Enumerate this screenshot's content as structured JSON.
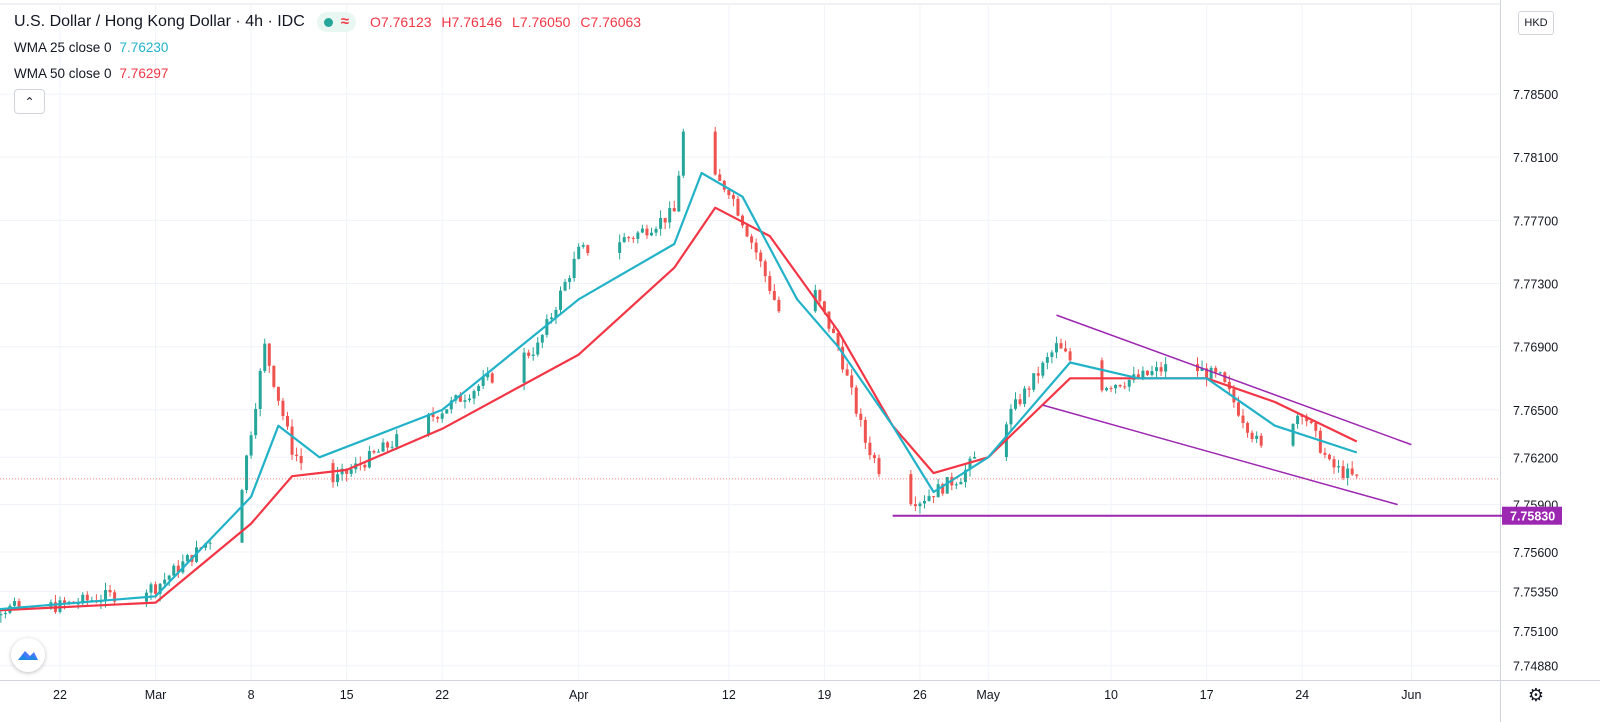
{
  "header": {
    "symbol": "U.S. Dollar / Hong Kong Dollar · 4h · IDC",
    "ohlc": {
      "o": "7.76123",
      "h": "7.76146",
      "l": "7.76050",
      "c": "7.76063"
    }
  },
  "studies": [
    {
      "label": "WMA 25 close 0",
      "value": "7.76230",
      "color": "#22b2c8"
    },
    {
      "label": "WMA 50 close 0",
      "value": "7.76297",
      "color": "#f23645"
    }
  ],
  "currency_label": "HKD",
  "colors": {
    "up": "#26a69a",
    "down": "#ef5350",
    "wma25": "#22b2c8",
    "wma50": "#f23645",
    "trend": "#9c27b0",
    "grid": "#f0f3fa",
    "axis_text": "#131722"
  },
  "chart_data": {
    "type": "candlestick",
    "title": "U.S. Dollar / Hong Kong Dollar",
    "timeframe": "4h",
    "ylim": [
      7.7478,
      7.7875
    ],
    "y_ticks": [
      "7.78500",
      "7.78100",
      "7.77700",
      "7.77300",
      "7.76900",
      "7.76500",
      "7.76200",
      "7.75900",
      "7.75600",
      "7.75350",
      "7.75100",
      "7.74880"
    ],
    "x_ticks": [
      "22",
      "Mar",
      "8",
      "15",
      "22",
      "Apr",
      "12",
      "19",
      "26",
      "May",
      "10",
      "17",
      "24",
      "Jun"
    ],
    "price_label": "7.75830",
    "current_price": 7.76063,
    "price_path": [
      [
        "Feb 15",
        7.7523
      ],
      [
        "Feb 22",
        7.7526
      ],
      [
        "Mar 1",
        7.7538
      ],
      [
        "Mar 4",
        7.756
      ],
      [
        "Mar 7",
        7.7585
      ],
      [
        "Mar 9",
        7.769
      ],
      [
        "Mar 11",
        7.7625
      ],
      [
        "Mar 13",
        7.76
      ],
      [
        "Mar 15",
        7.761
      ],
      [
        "Mar 22",
        7.765
      ],
      [
        "Mar 29",
        7.769
      ],
      [
        "Apr 1",
        7.775
      ],
      [
        "Apr 5",
        7.776
      ],
      [
        "Apr 8",
        7.7775
      ],
      [
        "Apr 9",
        7.785
      ],
      [
        "Apr 10",
        7.78
      ],
      [
        "Apr 12",
        7.779
      ],
      [
        "Apr 14",
        7.775
      ],
      [
        "Apr 16",
        7.7705
      ],
      [
        "Apr 18",
        7.773
      ],
      [
        "Apr 20",
        7.769
      ],
      [
        "Apr 22",
        7.763
      ],
      [
        "Apr 24",
        7.7596
      ],
      [
        "Apr 26",
        7.7593
      ],
      [
        "Apr 29",
        7.7608
      ],
      [
        "May 2",
        7.764
      ],
      [
        "May 6",
        7.769
      ],
      [
        "May 9",
        7.7665
      ],
      [
        "May 12",
        7.767
      ],
      [
        "May 15",
        7.768
      ],
      [
        "May 18",
        7.767
      ],
      [
        "May 21",
        7.7625
      ],
      [
        "May 24",
        7.765
      ],
      [
        "May 26",
        7.7615
      ],
      [
        "May 28",
        7.7606
      ]
    ],
    "wma25": [
      [
        "Feb 15",
        7.7522
      ],
      [
        "Mar 1",
        7.7532
      ],
      [
        "Mar 8",
        7.7595
      ],
      [
        "Mar 10",
        7.764
      ],
      [
        "Mar 13",
        7.762
      ],
      [
        "Mar 22",
        7.765
      ],
      [
        "Apr 1",
        7.772
      ],
      [
        "Apr 8",
        7.7755
      ],
      [
        "Apr 10",
        7.78
      ],
      [
        "Apr 13",
        7.7785
      ],
      [
        "Apr 17",
        7.772
      ],
      [
        "Apr 20",
        7.769
      ],
      [
        "Apr 24",
        7.764
      ],
      [
        "Apr 27",
        7.7598
      ],
      [
        "May 1",
        7.762
      ],
      [
        "May 7",
        7.768
      ],
      [
        "May 12",
        7.767
      ],
      [
        "May 17",
        7.767
      ],
      [
        "May 22",
        7.764
      ],
      [
        "May 28",
        7.7623
      ]
    ],
    "wma50": [
      [
        "Feb 15",
        7.7522
      ],
      [
        "Mar 1",
        7.7528
      ],
      [
        "Mar 8",
        7.7578
      ],
      [
        "Mar 11",
        7.7608
      ],
      [
        "Mar 15",
        7.7612
      ],
      [
        "Mar 22",
        7.7638
      ],
      [
        "Apr 1",
        7.7685
      ],
      [
        "Apr 8",
        7.774
      ],
      [
        "Apr 11",
        7.7778
      ],
      [
        "Apr 15",
        7.776
      ],
      [
        "Apr 20",
        7.77
      ],
      [
        "Apr 24",
        7.764
      ],
      [
        "Apr 27",
        7.761
      ],
      [
        "May 1",
        7.762
      ],
      [
        "May 7",
        7.767
      ],
      [
        "May 12",
        7.767
      ],
      [
        "May 17",
        7.767
      ],
      [
        "May 22",
        7.7655
      ],
      [
        "May 28",
        7.763
      ]
    ],
    "trendlines": [
      {
        "name": "channel-upper",
        "points": [
          [
            "May 6",
            7.771
          ],
          [
            "Jun 1",
            7.7628
          ]
        ]
      },
      {
        "name": "channel-lower",
        "points": [
          [
            "May 5",
            7.7653
          ],
          [
            "May 31",
            7.759
          ]
        ]
      },
      {
        "name": "support",
        "points": [
          [
            "Apr 24",
            7.7583
          ],
          [
            "Jun 10",
            7.7583
          ]
        ]
      }
    ]
  }
}
